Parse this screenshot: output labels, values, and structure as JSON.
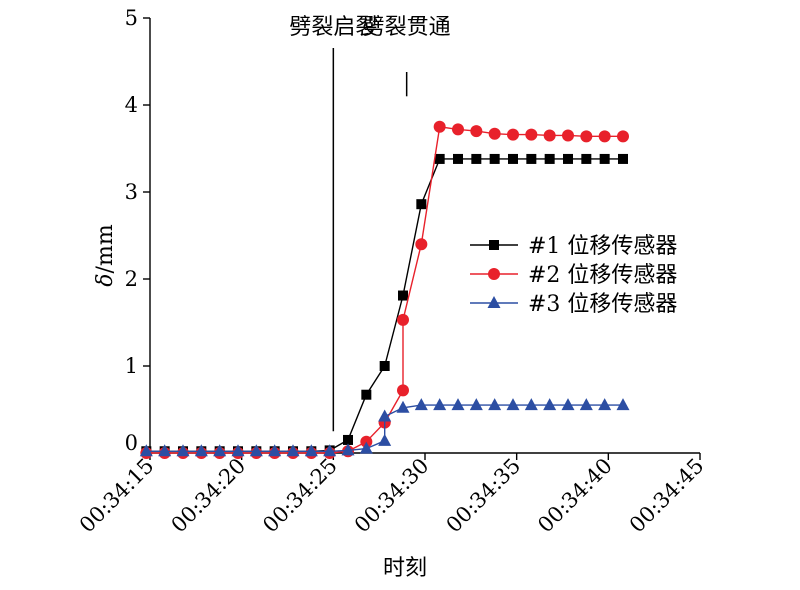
{
  "chart_data": {
    "type": "line",
    "xlabel": "时刻",
    "ylabel_symbol": "δ",
    "ylabel_unit": "/mm",
    "ylim": [
      0,
      5
    ],
    "yticks": [
      {
        "value": 1,
        "label": "1"
      },
      {
        "value": 2,
        "label": "2"
      },
      {
        "value": 3,
        "label": "3"
      },
      {
        "value": 4,
        "label": "4"
      },
      {
        "value": 5,
        "label": "5"
      }
    ],
    "y_zero_label": "0",
    "xlim_seconds": [
      2055,
      2085
    ],
    "xticks": [
      {
        "value": 2055,
        "label": "00:34:15"
      },
      {
        "value": 2060,
        "label": "00:34:20"
      },
      {
        "value": 2065,
        "label": "00:34:25"
      },
      {
        "value": 2070,
        "label": "00:34:30"
      },
      {
        "value": 2075,
        "label": "00:34:35"
      },
      {
        "value": 2080,
        "label": "00:34:40"
      },
      {
        "value": 2085,
        "label": "00:34:45"
      }
    ],
    "legend_position": "right",
    "annotations": [
      {
        "text": "劈裂启裂",
        "x": 2065
      },
      {
        "text": "劈裂贯通",
        "x": 2069
      }
    ],
    "series": [
      {
        "name": "#1 位移传感器",
        "color": "#000000",
        "marker": "square",
        "x": [
          2054.8,
          2055.8,
          2056.8,
          2057.8,
          2058.8,
          2059.8,
          2060.8,
          2061.8,
          2062.8,
          2063.8,
          2064.8,
          2065.8,
          2066.8,
          2067.8,
          2068.8,
          2069.8,
          2070.8,
          2071.8,
          2072.8,
          2073.8,
          2074.8,
          2075.8,
          2076.8,
          2077.8,
          2078.8,
          2079.8,
          2080.8
        ],
        "y": [
          0.02,
          0.02,
          0.02,
          0.02,
          0.02,
          0.02,
          0.02,
          0.02,
          0.02,
          0.02,
          0.03,
          0.15,
          0.67,
          1.0,
          1.81,
          2.86,
          3.38,
          3.38,
          3.38,
          3.38,
          3.38,
          3.38,
          3.38,
          3.38,
          3.38,
          3.38,
          3.38
        ]
      },
      {
        "name": "#2 位移传感器",
        "color": "#e8212b",
        "marker": "circle",
        "x": [
          2054.8,
          2055.8,
          2056.8,
          2057.8,
          2058.8,
          2059.8,
          2060.8,
          2061.8,
          2062.8,
          2063.8,
          2064.8,
          2065.8,
          2066.8,
          2067.8,
          2067.8,
          2068.8,
          2068.8,
          2069.8,
          2070.8,
          2071.8,
          2072.8,
          2073.8,
          2074.8,
          2075.8,
          2076.8,
          2077.8,
          2078.8,
          2079.8,
          2080.8
        ],
        "y": [
          0.0,
          0.0,
          0.0,
          0.0,
          0.0,
          0.0,
          0.0,
          0.0,
          0.0,
          0.0,
          0.0,
          0.02,
          0.13,
          0.35,
          0.35,
          0.72,
          1.53,
          2.4,
          3.75,
          3.72,
          3.7,
          3.67,
          3.66,
          3.66,
          3.65,
          3.65,
          3.64,
          3.64,
          3.64
        ]
      },
      {
        "name": "#3 位移传感器",
        "color": "#2c4ea3",
        "marker": "triangle",
        "x": [
          2054.8,
          2055.8,
          2056.8,
          2057.8,
          2058.8,
          2059.8,
          2060.8,
          2061.8,
          2062.8,
          2063.8,
          2064.8,
          2065.8,
          2066.8,
          2067.8,
          2067.8,
          2068.8,
          2069.8,
          2070.8,
          2071.8,
          2072.8,
          2073.8,
          2074.8,
          2075.8,
          2076.8,
          2077.8,
          2078.8,
          2079.8,
          2080.8
        ],
        "y": [
          0.02,
          0.02,
          0.02,
          0.02,
          0.02,
          0.02,
          0.02,
          0.02,
          0.02,
          0.02,
          0.02,
          0.03,
          0.05,
          0.14,
          0.42,
          0.52,
          0.55,
          0.55,
          0.55,
          0.55,
          0.55,
          0.55,
          0.55,
          0.55,
          0.55,
          0.55,
          0.55,
          0.55
        ]
      }
    ]
  }
}
